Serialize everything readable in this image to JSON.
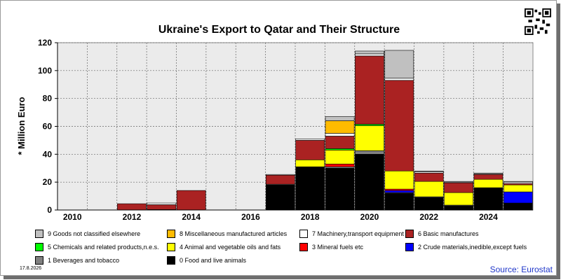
{
  "chart_data": {
    "type": "bar",
    "stacked": true,
    "title": "Ukraine's Export to Qatar and Their Structure",
    "ylabel": "* Million Euro",
    "xlabel": "",
    "ylim": [
      0,
      120
    ],
    "yticks": [
      0,
      20,
      40,
      60,
      80,
      100,
      120
    ],
    "xticks": [
      "2010",
      "2012",
      "2014",
      "2016",
      "2018",
      "2020",
      "2022",
      "2024"
    ],
    "grid": true,
    "legend_position": "bottom",
    "categories": [
      "2010",
      "2011",
      "2012",
      "2013",
      "2014",
      "2015",
      "2016",
      "2017",
      "2018",
      "2019",
      "2020",
      "2021",
      "2022",
      "2023",
      "2024",
      "2025"
    ],
    "series": [
      {
        "name": "0 Food and live animals",
        "color": "#000000",
        "values": [
          0,
          0,
          0,
          0.3,
          0,
          0,
          0,
          18,
          31,
          30,
          40,
          12,
          9,
          3,
          16,
          5
        ]
      },
      {
        "name": "1 Beverages and tobacco",
        "color": "#808080",
        "values": [
          0,
          0,
          0,
          0,
          0,
          0,
          0,
          0.5,
          0,
          1,
          2.5,
          0.5,
          0.5,
          0.5,
          0,
          0
        ]
      },
      {
        "name": "2 Crude materials,inedible,except fuels",
        "color": "#0000ff",
        "values": [
          0,
          0,
          0,
          0,
          0,
          0,
          0,
          0,
          0,
          0,
          0,
          1.5,
          0,
          0,
          0,
          8
        ]
      },
      {
        "name": "3 Mineral fuels etc",
        "color": "#ff0000",
        "values": [
          0,
          0,
          0,
          0,
          0,
          0,
          0,
          0,
          0,
          2,
          0,
          1,
          0,
          0,
          0,
          0
        ]
      },
      {
        "name": "4 Animal and vegetable oils and fats",
        "color": "#ffff00",
        "values": [
          0,
          0,
          0,
          0,
          0,
          0,
          0,
          0,
          5,
          10,
          18,
          13,
          11,
          9,
          6,
          5
        ]
      },
      {
        "name": "5 Chemicals and related products,n.e.s.",
        "color": "#00ff00",
        "values": [
          0,
          0,
          0,
          0,
          0,
          0,
          0,
          0,
          0,
          1,
          1,
          0,
          0,
          0,
          0,
          0
        ]
      },
      {
        "name": "6 Basic manufactures",
        "color": "#aa2222",
        "values": [
          0,
          0,
          4.5,
          3.5,
          14,
          0,
          0,
          6.5,
          14,
          9,
          49,
          65,
          6,
          7,
          3.5,
          1
        ]
      },
      {
        "name": "7 Machinery,transport equipment",
        "color": "#ffffff",
        "values": [
          0,
          0,
          0,
          1.2,
          0,
          0,
          0,
          0.5,
          1,
          2,
          1.5,
          1.5,
          0.8,
          0.5,
          0.5,
          1
        ]
      },
      {
        "name": "8 Miscellaneous manufactured articles",
        "color": "#ffbb00",
        "values": [
          0,
          0,
          0,
          0,
          0,
          0,
          0,
          0,
          0,
          9,
          0,
          0,
          0,
          0,
          0,
          0
        ]
      },
      {
        "name": "9 Goods not classified elsewhere",
        "color": "#c0c0c0",
        "values": [
          0,
          0,
          0,
          0,
          0,
          0,
          0,
          0,
          0,
          3,
          2,
          20,
          0.7,
          0.5,
          0.5,
          0.5
        ]
      }
    ]
  },
  "footer": {
    "date": "17.8.2026",
    "source": "Source: Eurostat"
  },
  "colors": {
    "plot_background": "#ebebeb",
    "grid": "#555555",
    "source_text": "#1f36c9"
  },
  "icons": {
    "qr": "qr-code-icon"
  }
}
